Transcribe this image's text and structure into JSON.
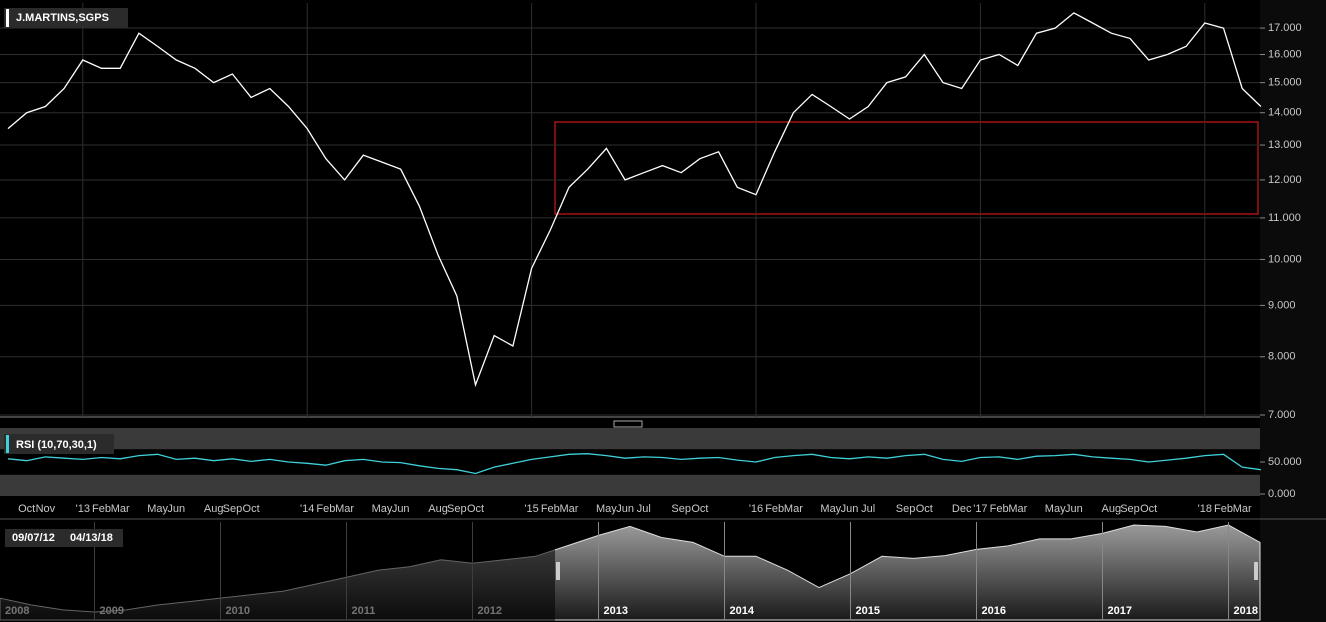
{
  "chart_data": [
    {
      "type": "line",
      "title": "J.MARTINS,SGPS",
      "color": "#ffffff",
      "log_scale": true,
      "grid": true,
      "categories": [
        null,
        "Oct",
        "Nov",
        null,
        "'13",
        "Feb",
        "Mar",
        null,
        "May",
        "Jun",
        null,
        "Aug",
        "Sep",
        "Oct",
        null,
        null,
        "'14",
        "Feb",
        "Mar",
        null,
        "May",
        "Jun",
        null,
        "Aug",
        "Sep",
        "Oct",
        null,
        null,
        "'15",
        "Feb",
        "Mar",
        null,
        "May",
        "Jun",
        "Jul",
        null,
        "Sep",
        "Oct",
        null,
        null,
        "'16",
        "Feb",
        "Mar",
        null,
        "May",
        "Jun",
        "Jul",
        null,
        "Sep",
        "Oct",
        null,
        "Dec",
        "'17",
        "Feb",
        "Mar",
        null,
        "May",
        "Jun",
        null,
        "Aug",
        "Sep",
        "Oct",
        null,
        null,
        "'18",
        "Feb",
        "Mar",
        null
      ],
      "values": [
        13.5,
        14.0,
        14.2,
        14.8,
        15.8,
        15.5,
        15.5,
        16.8,
        16.3,
        15.8,
        15.5,
        15.0,
        15.3,
        14.5,
        14.8,
        14.2,
        13.5,
        12.6,
        12.0,
        12.7,
        12.5,
        12.3,
        11.3,
        10.1,
        9.2,
        7.5,
        8.4,
        8.2,
        9.8,
        10.7,
        11.8,
        12.3,
        12.9,
        12.0,
        12.2,
        12.4,
        12.2,
        12.6,
        12.8,
        11.8,
        11.6,
        12.8,
        14.0,
        14.6,
        14.2,
        13.8,
        14.2,
        15.0,
        15.2,
        16.0,
        15.0,
        14.8,
        15.8,
        16.0,
        15.6,
        16.8,
        17.0,
        17.6,
        17.2,
        16.8,
        16.6,
        15.8,
        16.0,
        16.3,
        17.2,
        17.0,
        14.8,
        14.2
      ],
      "ylim": [
        7,
        17.8
      ],
      "yticks": [
        {
          "value": 7,
          "label": "7.000"
        },
        {
          "value": 8,
          "label": "8.000"
        },
        {
          "value": 9,
          "label": "9.000"
        },
        {
          "value": 10,
          "label": "10.000"
        },
        {
          "value": 11,
          "label": "11.000"
        },
        {
          "value": 12,
          "label": "12.000"
        },
        {
          "value": 13,
          "label": "13.000"
        },
        {
          "value": 14,
          "label": "14.000"
        },
        {
          "value": 15,
          "label": "15.000"
        },
        {
          "value": 16,
          "label": "16.000"
        },
        {
          "value": 17,
          "label": "17.000"
        }
      ]
    },
    {
      "type": "line",
      "title": "RSI (10,70,30,1)",
      "color": "#3fd0d8",
      "bands": [
        30,
        70
      ],
      "values": [
        55,
        52,
        58,
        56,
        54,
        57,
        55,
        60,
        62,
        54,
        56,
        52,
        55,
        51,
        54,
        50,
        48,
        45,
        52,
        54,
        50,
        49,
        44,
        40,
        38,
        32,
        42,
        48,
        54,
        58,
        62,
        63,
        60,
        56,
        58,
        57,
        54,
        56,
        57,
        53,
        50,
        57,
        60,
        62,
        57,
        55,
        58,
        56,
        60,
        62,
        54,
        51,
        57,
        58,
        54,
        59,
        60,
        62,
        58,
        56,
        54,
        50,
        53,
        56,
        60,
        62,
        42,
        38
      ],
      "ylim": [
        0,
        100
      ],
      "yticks": [
        {
          "value": 0,
          "label": "0.000"
        },
        {
          "value": 50,
          "label": "50.000"
        }
      ]
    },
    {
      "type": "area",
      "range_start": "09/07/12",
      "range_end": "04/13/18",
      "categories": [
        "2008",
        null,
        null,
        "2009",
        null,
        null,
        null,
        "2010",
        null,
        null,
        null,
        "2011",
        null,
        null,
        null,
        "2012",
        null,
        null,
        null,
        "2013",
        null,
        null,
        null,
        "2014",
        null,
        null,
        null,
        "2015",
        null,
        null,
        null,
        "2016",
        null,
        null,
        null,
        "2017",
        null,
        null,
        null,
        "2018",
        null
      ],
      "values": [
        6.5,
        5.5,
        4.8,
        4.5,
        4.8,
        5.5,
        6.0,
        6.5,
        7.0,
        7.5,
        8.5,
        9.5,
        10.5,
        11.0,
        12.0,
        11.5,
        12.0,
        12.5,
        14.0,
        15.5,
        16.8,
        15.2,
        14.5,
        12.5,
        12.5,
        10.5,
        8.0,
        10.0,
        12.5,
        12.2,
        12.6,
        13.5,
        14.0,
        15.0,
        15.0,
        15.8,
        17.0,
        16.8,
        16.0,
        17.0,
        14.5
      ]
    }
  ]
}
